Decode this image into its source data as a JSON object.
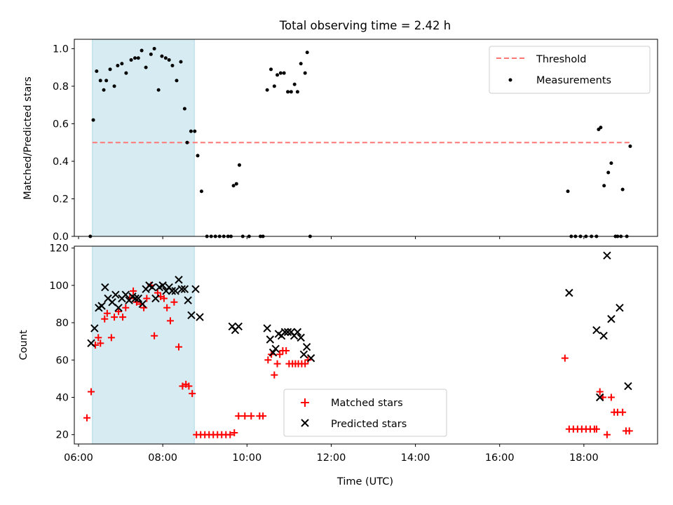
{
  "figure": {
    "title": "Total observing time = 2.42 h",
    "xlabel": "Time (UTC)",
    "x_tick_labels": [
      "06:00",
      "08:00",
      "10:00",
      "12:00",
      "14:00",
      "16:00",
      "18:00"
    ]
  },
  "chart_data": [
    {
      "type": "scatter",
      "panel": "top",
      "ylabel": "Matched/Predicted stars",
      "xlim": [
        5.9,
        19.75
      ],
      "ylim": [
        0,
        1.05
      ],
      "y_ticks": [
        "0.0",
        "0.2",
        "0.4",
        "0.6",
        "0.8",
        "1.0"
      ],
      "shaded_span": [
        6.33,
        8.75
      ],
      "legend": {
        "placement": "top-right",
        "entries": [
          "Threshold",
          "Measurements"
        ]
      },
      "series": [
        {
          "name": "Threshold",
          "kind": "line",
          "x": [
            6.33,
            19.1
          ],
          "y": [
            0.5,
            0.5
          ],
          "color": "#ff7777"
        },
        {
          "name": "Measurements",
          "kind": "points",
          "color": "#000000",
          "x": [
            6.28,
            6.35,
            6.43,
            6.52,
            6.6,
            6.66,
            6.75,
            6.85,
            6.93,
            7.03,
            7.13,
            7.25,
            7.34,
            7.42,
            7.5,
            7.6,
            7.72,
            7.8,
            7.9,
            7.98,
            8.07,
            8.15,
            8.23,
            8.33,
            8.43,
            8.52,
            8.58,
            8.67,
            8.76,
            8.83,
            8.92,
            9.05,
            9.15,
            9.25,
            9.35,
            9.45,
            9.55,
            9.62,
            9.68,
            9.75,
            9.82,
            9.9,
            10.05,
            10.32,
            10.38,
            10.48,
            10.57,
            10.65,
            10.72,
            10.8,
            10.88,
            10.97,
            11.05,
            11.13,
            11.2,
            11.28,
            11.38,
            11.43,
            11.5,
            17.62,
            17.7,
            17.8,
            17.92,
            18.05,
            18.18,
            18.3,
            18.35,
            18.4,
            18.48,
            18.58,
            18.65,
            18.75,
            18.8,
            18.88,
            18.92,
            19.02,
            19.1
          ],
          "y": [
            0.0,
            0.62,
            0.88,
            0.83,
            0.78,
            0.83,
            0.89,
            0.8,
            0.91,
            0.92,
            0.87,
            0.94,
            0.95,
            0.95,
            0.99,
            0.9,
            0.97,
            1.0,
            0.78,
            0.96,
            0.95,
            0.94,
            0.91,
            0.83,
            0.93,
            0.68,
            0.5,
            0.56,
            0.56,
            0.43,
            0.24,
            0.0,
            0.0,
            0.0,
            0.0,
            0.0,
            0.0,
            0.0,
            0.27,
            0.28,
            0.38,
            0.0,
            0.0,
            0.0,
            0.0,
            0.78,
            0.89,
            0.8,
            0.86,
            0.87,
            0.87,
            0.77,
            0.77,
            0.81,
            0.77,
            0.92,
            0.87,
            0.98,
            0.0,
            0.24,
            0.0,
            0.0,
            0.0,
            0.0,
            0.0,
            0.0,
            0.57,
            0.58,
            0.27,
            0.34,
            0.39,
            0.0,
            0.0,
            0.0,
            0.25,
            0.0,
            0.48
          ]
        }
      ]
    },
    {
      "type": "scatter",
      "panel": "bottom",
      "ylabel": "Count",
      "xlim": [
        5.9,
        19.75
      ],
      "ylim": [
        15,
        121
      ],
      "y_ticks": [
        "20",
        "40",
        "60",
        "80",
        "100",
        "120"
      ],
      "shaded_span": [
        6.33,
        8.75
      ],
      "legend": {
        "placement": "bottom-center",
        "entries": [
          "Matched stars",
          "Predicted stars"
        ]
      },
      "series": [
        {
          "name": "Matched stars",
          "marker": "plus",
          "color": "#ff0000",
          "x": [
            6.2,
            6.3,
            6.4,
            6.47,
            6.52,
            6.62,
            6.68,
            6.78,
            6.85,
            6.95,
            7.05,
            7.12,
            7.22,
            7.3,
            7.38,
            7.47,
            7.55,
            7.62,
            7.72,
            7.8,
            7.88,
            7.95,
            8.03,
            8.1,
            8.18,
            8.27,
            8.38,
            8.47,
            8.55,
            8.62,
            8.7,
            8.8,
            8.9,
            9.0,
            9.1,
            9.2,
            9.3,
            9.4,
            9.5,
            9.6,
            9.7,
            9.8,
            9.95,
            10.1,
            10.3,
            10.38,
            10.5,
            10.58,
            10.65,
            10.72,
            10.78,
            10.85,
            10.93,
            11.0,
            11.08,
            11.15,
            11.22,
            11.3,
            11.38,
            11.45,
            17.55,
            17.65,
            17.75,
            17.85,
            17.95,
            18.05,
            18.15,
            18.25,
            18.3,
            18.38,
            18.45,
            18.55,
            18.65,
            18.72,
            18.8,
            18.92,
            19.0,
            19.08
          ],
          "y": [
            29,
            43,
            68,
            72,
            69,
            82,
            85,
            72,
            83,
            86,
            83,
            88,
            93,
            97,
            91,
            90,
            88,
            93,
            100,
            73,
            96,
            94,
            93,
            88,
            81,
            91,
            67,
            46,
            47,
            46,
            42,
            20,
            20,
            20,
            20,
            20,
            20,
            20,
            20,
            20,
            21,
            30,
            30,
            30,
            30,
            30,
            60,
            63,
            52,
            58,
            63,
            65,
            65,
            58,
            58,
            58,
            58,
            58,
            58,
            60,
            61,
            23,
            23,
            23,
            23,
            23,
            23,
            23,
            23,
            43,
            40,
            20,
            40,
            32,
            32,
            32,
            22,
            22
          ]
        },
        {
          "name": "Predicted stars",
          "marker": "x",
          "color": "#000000",
          "x": [
            6.3,
            6.38,
            6.48,
            6.55,
            6.63,
            6.7,
            6.8,
            6.88,
            6.95,
            7.03,
            7.12,
            7.2,
            7.28,
            7.35,
            7.42,
            7.52,
            7.6,
            7.68,
            7.75,
            7.83,
            7.92,
            8.0,
            8.08,
            8.15,
            8.22,
            8.3,
            8.38,
            8.45,
            8.52,
            8.6,
            8.68,
            8.78,
            8.88,
            9.65,
            9.72,
            9.8,
            10.48,
            10.55,
            10.62,
            10.68,
            10.75,
            10.82,
            10.9,
            10.97,
            11.05,
            11.12,
            11.2,
            11.28,
            11.35,
            11.42,
            11.52,
            17.65,
            18.3,
            18.38,
            18.47,
            18.55,
            18.65,
            18.85,
            19.05
          ],
          "y": [
            69,
            77,
            88,
            89,
            99,
            93,
            91,
            95,
            88,
            93,
            95,
            92,
            94,
            93,
            93,
            90,
            98,
            100,
            99,
            93,
            99,
            100,
            97,
            99,
            97,
            97,
            103,
            98,
            98,
            92,
            84,
            98,
            83,
            78,
            76,
            78,
            77,
            71,
            64,
            66,
            74,
            73,
            75,
            75,
            75,
            73,
            75,
            72,
            63,
            67,
            61,
            96,
            76,
            40,
            73,
            116,
            82,
            88,
            46
          ]
        }
      ]
    }
  ]
}
